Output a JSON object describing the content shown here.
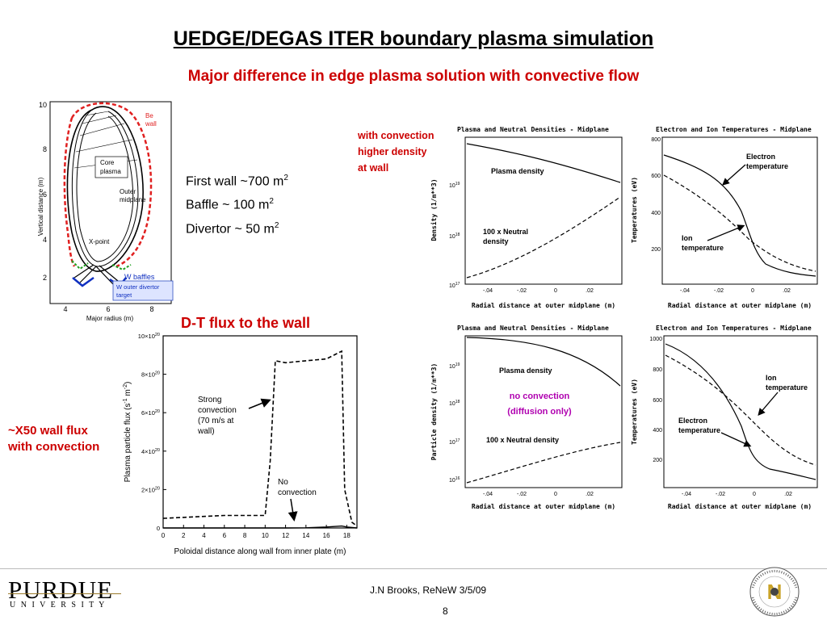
{
  "title": "UEDGE/DEGAS ITER boundary plasma simulation",
  "subtitle": "Major difference in edge plasma solution with convective flow",
  "geometry_fig": {
    "ylabel": "Vertical distance (m)",
    "xlabel": "Major radius (m)",
    "yticks": [
      "10",
      "8",
      "6",
      "4",
      "2"
    ],
    "xticks": [
      "4",
      "6",
      "8"
    ],
    "labels": {
      "be_wall": [
        "Be",
        "wall"
      ],
      "core": [
        "Core",
        "plasma"
      ],
      "outer": [
        "Outer",
        "midplane"
      ],
      "xpoint": "X-point",
      "w_baffles": "W baffles",
      "w_outer_divertor": [
        "W outer divertor",
        "target"
      ]
    }
  },
  "wall_areas": {
    "first_wall": {
      "text": "First wall ~700 m",
      "sup": "2"
    },
    "baffle": {
      "text": "Baffle ~ 100 m",
      "sup": "2"
    },
    "divertor": {
      "text": "Divertor ~ 50 m",
      "sup": "2"
    }
  },
  "with_convection_note": [
    "with convection",
    "higher density",
    "at wall"
  ],
  "no_convection_note": [
    "no convection",
    "(diffusion only)"
  ],
  "dt_flux_title": "D-T flux to the wall",
  "x50_note": [
    "~X50 wall flux",
    "with convection"
  ],
  "flux_chart": {
    "ylabel": "Plasma particle flux (s",
    "xlabel": "Poloidal distance along wall from inner plate (m)",
    "xticks": [
      "0",
      "2",
      "4",
      "6",
      "8",
      "10",
      "12",
      "14",
      "16",
      "18"
    ],
    "yticks": [
      "10×10",
      "8×10",
      "6×10",
      "4×10",
      "2×10",
      "0"
    ],
    "ytick_exp": "20",
    "strong": [
      "Strong",
      "convection",
      "(70 m/s at",
      "wall)"
    ],
    "noconv": [
      "No",
      "convection"
    ]
  },
  "panels": {
    "dens_title": "Plasma and Neutral Densities - Midplane",
    "temp_title": "Electron and Ion Temperatures - Midplane",
    "x_axis_label": "Radial distance at outer midplane (m)",
    "x_ticks": [
      "-.04",
      "-.02",
      "0",
      ".02"
    ],
    "dens_ylabel_top": "Density (1/m**3)",
    "dens_ylabel_bot": "Particle density (1/m**3)",
    "temp_ylabel": "Temperatures (eV)",
    "plasma_density": "Plasma density",
    "neutral": [
      "100 x Neutral",
      "density"
    ],
    "neutral_bot": "100 x Neutral density",
    "electron_temp": [
      "Electron",
      "temperature"
    ],
    "ion_temp": [
      "Ion",
      "temperature"
    ],
    "top_dens_yticks": [
      "10",
      "10",
      "10"
    ],
    "top_dens_yexp": [
      "19",
      "18",
      "17"
    ],
    "bot_dens_yexp": [
      "19",
      "18",
      "17",
      "16"
    ],
    "top_temp_yticks": [
      "800",
      "600",
      "400",
      "200"
    ],
    "bot_temp_yticks": [
      "1000",
      "800",
      "600",
      "400",
      "200"
    ]
  },
  "chart_data": {
    "type": "line",
    "title": "",
    "xlabel": "Poloidal distance along wall from inner plate (m)",
    "ylabel": "Plasma particle flux (s-1 m-2)",
    "xlim": [
      0,
      19
    ],
    "ylim": [
      0,
      1e+21
    ],
    "series": [
      {
        "name": "Strong convection",
        "x": [
          0,
          2,
          4,
          6,
          8,
          10,
          10.5,
          11,
          12,
          14,
          16,
          17.5,
          17.8,
          18.5,
          19
        ],
        "y": [
          5e+19,
          5.5e+19,
          6e+19,
          6.5e+19,
          6.5e+19,
          6.5e+19,
          3.5e+20,
          8.7e+20,
          8.6e+20,
          8.7e+20,
          8.8e+20,
          9.2e+20,
          2e+20,
          3e+19,
          1e+19
        ]
      },
      {
        "name": "No convection",
        "x": [
          0,
          4,
          8,
          10,
          12,
          14,
          16,
          17.5,
          18,
          19
        ],
        "y": [
          0,
          0,
          0,
          0,
          0,
          1e+18,
          5e+18,
          1e+19,
          5e+18,
          0
        ]
      }
    ]
  },
  "footer": {
    "logo_main": "PURDUE",
    "logo_sub": "U N I V E R S I T Y",
    "credit": "J.N Brooks, ReNeW 3/5/09",
    "page": "8",
    "seal_text": "PURDUE NUCLEAR ENGINEERING"
  }
}
